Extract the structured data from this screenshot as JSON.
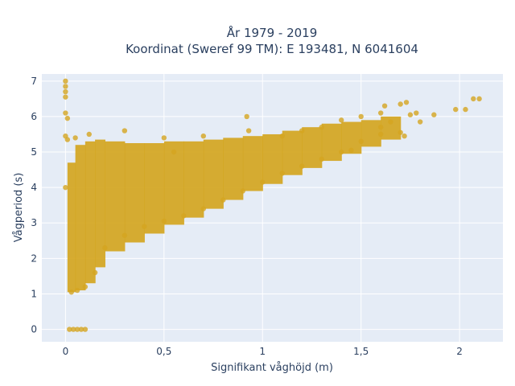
{
  "chart_data": {
    "type": "scatter",
    "title": "År 1979 - 2019",
    "subtitle": "Koordinat (Sweref 99 TM): E 193481, N 6041604",
    "xlabel": "Signifikant våghöjd (m)",
    "ylabel": "Vågperiod (s)",
    "xlim": [
      -0.12,
      2.22
    ],
    "ylim": [
      -0.35,
      7.2
    ],
    "xticks": [
      0,
      0.5,
      1,
      1.5,
      2
    ],
    "xtick_labels": [
      "0",
      "0,5",
      "1",
      "1,5",
      "2"
    ],
    "yticks": [
      0,
      1,
      2,
      3,
      4,
      5,
      6,
      7
    ],
    "ytick_labels": [
      "0",
      "1",
      "2",
      "3",
      "4",
      "5",
      "6",
      "7"
    ],
    "grid": true,
    "marker_color": "#d4a520",
    "background_color": "#e5ecf6",
    "series": [
      {
        "points": [
          [
            0.0,
            7.0
          ],
          [
            0.0,
            6.85
          ],
          [
            0.0,
            6.7
          ],
          [
            0.0,
            6.55
          ],
          [
            0.0,
            6.1
          ],
          [
            0.01,
            5.95
          ],
          [
            0.0,
            5.45
          ],
          [
            0.01,
            5.35
          ],
          [
            0.0,
            4.0
          ],
          [
            0.02,
            0.0
          ],
          [
            0.04,
            0.0
          ],
          [
            0.06,
            0.0
          ],
          [
            0.08,
            0.0
          ],
          [
            0.1,
            0.0
          ],
          [
            0.03,
            1.05
          ],
          [
            0.06,
            1.1
          ],
          [
            0.1,
            1.2
          ],
          [
            0.15,
            1.6
          ],
          [
            0.2,
            2.3
          ],
          [
            0.3,
            2.65
          ],
          [
            0.4,
            2.9
          ],
          [
            0.5,
            3.05
          ],
          [
            0.6,
            3.2
          ],
          [
            0.7,
            3.4
          ],
          [
            0.8,
            3.65
          ],
          [
            0.9,
            3.9
          ],
          [
            1.0,
            4.15
          ],
          [
            1.1,
            4.4
          ],
          [
            1.2,
            4.6
          ],
          [
            1.3,
            4.8
          ],
          [
            1.4,
            5.0
          ],
          [
            1.5,
            5.3
          ],
          [
            1.6,
            5.5
          ],
          [
            1.7,
            5.55
          ],
          [
            1.8,
            5.85
          ],
          [
            1.1,
            5.45
          ],
          [
            1.2,
            5.6
          ],
          [
            1.3,
            5.7
          ],
          [
            1.4,
            5.9
          ],
          [
            1.5,
            6.0
          ],
          [
            1.6,
            6.1
          ],
          [
            1.62,
            6.3
          ],
          [
            1.7,
            6.35
          ],
          [
            1.73,
            6.4
          ],
          [
            1.75,
            6.05
          ],
          [
            1.78,
            6.1
          ],
          [
            1.87,
            6.05
          ],
          [
            1.98,
            6.2
          ],
          [
            2.03,
            6.2
          ],
          [
            2.07,
            6.5
          ],
          [
            2.1,
            6.5
          ],
          [
            0.5,
            5.4
          ],
          [
            0.7,
            5.45
          ],
          [
            0.93,
            5.6
          ],
          [
            0.92,
            6.0
          ],
          [
            0.55,
            5.0
          ],
          [
            0.3,
            5.6
          ],
          [
            0.12,
            5.5
          ],
          [
            0.05,
            5.4
          ],
          [
            1.6,
            5.7
          ],
          [
            1.65,
            5.85
          ],
          [
            1.72,
            5.45
          ],
          [
            1.45,
            5.05
          ]
        ]
      }
    ],
    "density_bands": [
      {
        "x0": 0.01,
        "x1": 0.05,
        "ymin": 1.05,
        "ymax": 4.7
      },
      {
        "x0": 0.05,
        "x1": 0.1,
        "ymin": 1.1,
        "ymax": 5.2
      },
      {
        "x0": 0.1,
        "x1": 0.15,
        "ymin": 1.3,
        "ymax": 5.3
      },
      {
        "x0": 0.15,
        "x1": 0.2,
        "ymin": 1.75,
        "ymax": 5.35
      },
      {
        "x0": 0.2,
        "x1": 0.3,
        "ymin": 2.2,
        "ymax": 5.3
      },
      {
        "x0": 0.3,
        "x1": 0.4,
        "ymin": 2.45,
        "ymax": 5.25
      },
      {
        "x0": 0.4,
        "x1": 0.5,
        "ymin": 2.7,
        "ymax": 5.25
      },
      {
        "x0": 0.5,
        "x1": 0.6,
        "ymin": 2.95,
        "ymax": 5.3
      },
      {
        "x0": 0.6,
        "x1": 0.7,
        "ymin": 3.15,
        "ymax": 5.3
      },
      {
        "x0": 0.7,
        "x1": 0.8,
        "ymin": 3.4,
        "ymax": 5.35
      },
      {
        "x0": 0.8,
        "x1": 0.9,
        "ymin": 3.65,
        "ymax": 5.4
      },
      {
        "x0": 0.9,
        "x1": 1.0,
        "ymin": 3.9,
        "ymax": 5.45
      },
      {
        "x0": 1.0,
        "x1": 1.1,
        "ymin": 4.1,
        "ymax": 5.5
      },
      {
        "x0": 1.1,
        "x1": 1.2,
        "ymin": 4.35,
        "ymax": 5.6
      },
      {
        "x0": 1.2,
        "x1": 1.3,
        "ymin": 4.55,
        "ymax": 5.7
      },
      {
        "x0": 1.3,
        "x1": 1.4,
        "ymin": 4.75,
        "ymax": 5.8
      },
      {
        "x0": 1.4,
        "x1": 1.5,
        "ymin": 4.95,
        "ymax": 5.85
      },
      {
        "x0": 1.5,
        "x1": 1.6,
        "ymin": 5.15,
        "ymax": 5.9
      },
      {
        "x0": 1.6,
        "x1": 1.7,
        "ymin": 5.35,
        "ymax": 6.0
      }
    ]
  }
}
